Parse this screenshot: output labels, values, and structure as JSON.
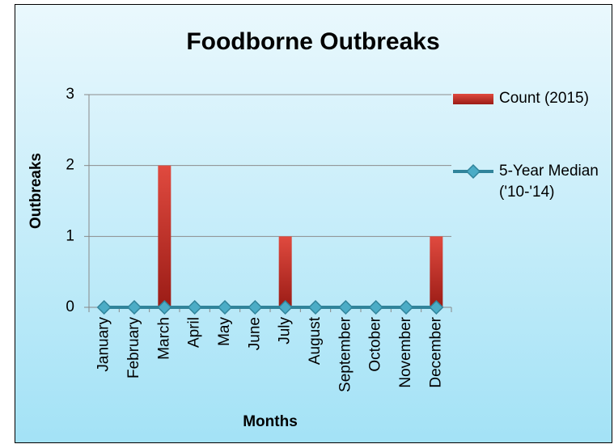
{
  "chart_data": {
    "type": "bar",
    "title": "Foodborne Outbreaks",
    "x_label": "Months",
    "y_label": "Outbreaks",
    "categories": [
      "January",
      "February",
      "March",
      "April",
      "May",
      "June",
      "July",
      "August",
      "September",
      "October",
      "November",
      "December"
    ],
    "series": [
      {
        "name": "Count (2015)",
        "type": "bar",
        "color": "#c0392b",
        "values": [
          0,
          0,
          2,
          0,
          0,
          0,
          1,
          0,
          0,
          0,
          0,
          1
        ]
      },
      {
        "name": "5-Year Median ('10-'14)",
        "type": "line",
        "color": "#31849b",
        "values": [
          0,
          0,
          0,
          0,
          0,
          0,
          0,
          0,
          0,
          0,
          0,
          0
        ]
      }
    ],
    "ylim": [
      0,
      3
    ],
    "yticks": [
      0,
      1,
      2,
      3
    ],
    "grid": true,
    "legend": "right"
  }
}
